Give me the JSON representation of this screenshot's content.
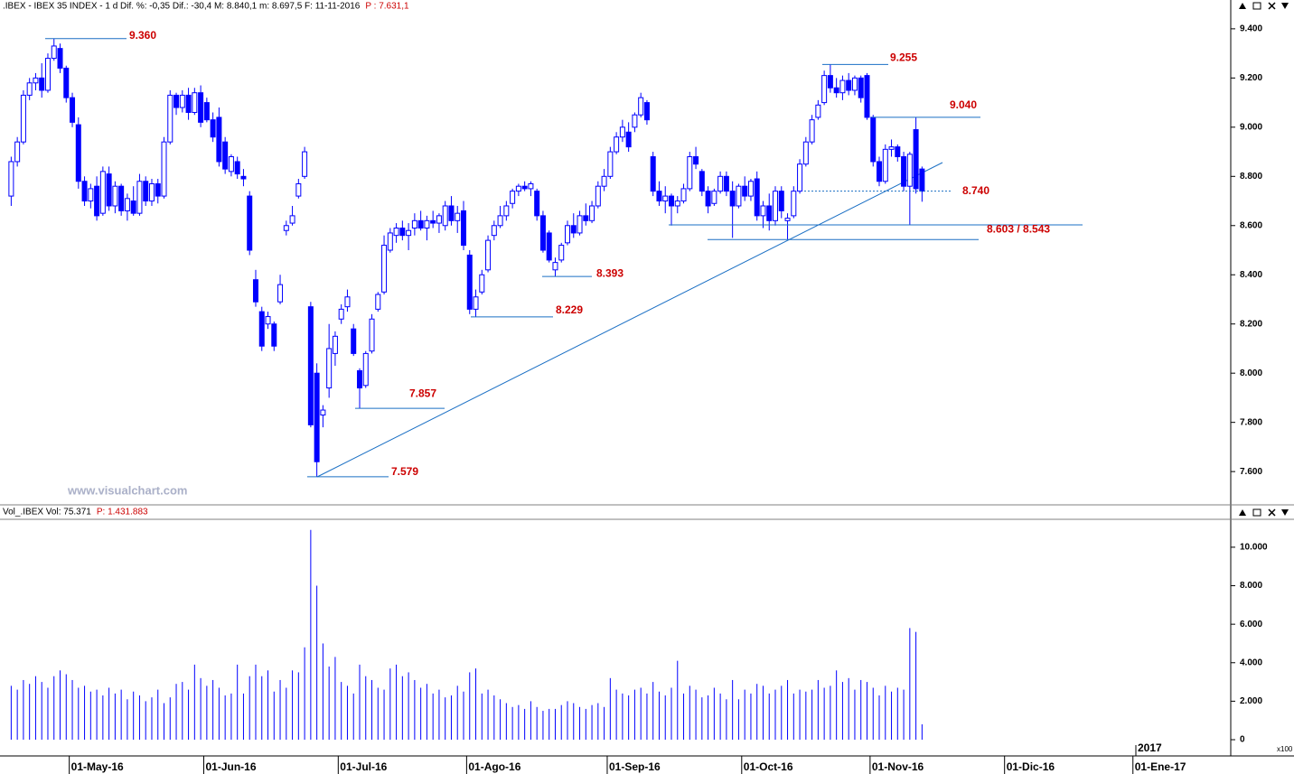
{
  "chart_data": [
    {
      "type": "candlestick",
      "title": ".IBEX - IBEX 35 INDEX - 1 d Dif. %: -0,35  Dif.: -30,4  M: 8.840,1  m: 8.697,5  F: 11-11-2016",
      "price_label": "P : 7.631,1",
      "watermark": "www.visualchart.com",
      "color": "#0000ff",
      "ylim": [
        7472,
        9473
      ],
      "yticks": [
        {
          "value": 7600,
          "label": "7.600"
        },
        {
          "value": 7800,
          "label": "7.800"
        },
        {
          "value": 8000,
          "label": "8.000"
        },
        {
          "value": 8200,
          "label": "8.200"
        },
        {
          "value": 8400,
          "label": "8.400"
        },
        {
          "value": 8600,
          "label": "8.600"
        },
        {
          "value": 8800,
          "label": "8.800"
        },
        {
          "value": 9000,
          "label": "9.000"
        },
        {
          "value": 9200,
          "label": "9.200"
        },
        {
          "value": 9400,
          "label": "9.400"
        }
      ],
      "open": [
        8720,
        8860,
        8940,
        9130,
        9180,
        9200,
        9150,
        9280,
        9320,
        9240,
        9120,
        9010,
        8780,
        8700,
        8760,
        8650,
        8810,
        8680,
        8760,
        8660,
        8700,
        8650,
        8780,
        8700,
        8770,
        8720,
        8940,
        9130,
        9080,
        9130,
        9060,
        9140,
        9100,
        9030,
        9040,
        8940,
        8820,
        8860,
        8800,
        8720,
        8380,
        8250,
        8200,
        8200,
        8290,
        8580,
        8610,
        8720,
        8800,
        8270,
        8000,
        7830,
        7940,
        8080,
        8220,
        8270,
        8180,
        8010,
        7950,
        8090,
        8260,
        8330,
        8500,
        8560,
        8590,
        8560,
        8590,
        8620,
        8590,
        8620,
        8610,
        8600,
        8680,
        8620,
        8660,
        8480,
        8260,
        8330,
        8420,
        8560,
        8600,
        8640,
        8690,
        8740,
        8760,
        8750,
        8740,
        8640,
        8570,
        8420,
        8460,
        8530,
        8600,
        8570,
        8640,
        8620,
        8680,
        8760,
        8800,
        8900,
        8960,
        8980,
        9000,
        9050,
        9100,
        8880,
        8740,
        8700,
        8720,
        8680,
        8700,
        8750,
        8880,
        8820,
        8740,
        8690,
        8740,
        8800,
        8740,
        8680,
        8760,
        8720,
        8790,
        8640,
        8680,
        8620,
        8740,
        8620,
        8640,
        8740,
        8850,
        8940,
        9040,
        9100,
        9210,
        9160,
        9140,
        9190,
        9150,
        9200,
        9210,
        9040,
        8860,
        8780,
        8910,
        8920,
        8880,
        8760,
        8990,
        8830
      ],
      "high": [
        8880,
        8960,
        9150,
        9200,
        9220,
        9260,
        9300,
        9360,
        9340,
        9250,
        9140,
        9040,
        8800,
        8770,
        8800,
        8840,
        8840,
        8780,
        8770,
        8730,
        8760,
        8810,
        8800,
        8790,
        8790,
        8960,
        9150,
        9140,
        9150,
        9160,
        9160,
        9170,
        9120,
        9060,
        9080,
        8960,
        8890,
        8880,
        8830,
        8740,
        8420,
        8270,
        8250,
        8210,
        8400,
        8620,
        8680,
        8790,
        8920,
        8290,
        8040,
        7870,
        8200,
        8170,
        8280,
        8340,
        8200,
        8020,
        8090,
        8240,
        8330,
        8560,
        8590,
        8610,
        8620,
        8610,
        8650,
        8660,
        8640,
        8660,
        8650,
        8700,
        8720,
        8680,
        8700,
        8500,
        8340,
        8420,
        8560,
        8620,
        8680,
        8700,
        8750,
        8770,
        8780,
        8780,
        8750,
        8660,
        8580,
        8470,
        8530,
        8620,
        8650,
        8660,
        8690,
        8700,
        8780,
        8830,
        8920,
        8980,
        9030,
        9020,
        9060,
        9140,
        9110,
        8900,
        8780,
        8760,
        8730,
        8720,
        8770,
        8900,
        8920,
        8830,
        8760,
        8750,
        8820,
        8820,
        8780,
        8770,
        8800,
        8790,
        8820,
        8700,
        8730,
        8760,
        8760,
        8650,
        8760,
        8870,
        8960,
        9050,
        9110,
        9230,
        9255,
        9200,
        9210,
        9220,
        9210,
        9210,
        9220,
        9050,
        8880,
        8930,
        8950,
        8930,
        8900,
        8900,
        9040,
        8840
      ],
      "low": [
        8680,
        8840,
        8930,
        9110,
        9150,
        9120,
        9140,
        9270,
        9220,
        9100,
        9000,
        8750,
        8680,
        8670,
        8620,
        8640,
        8660,
        8650,
        8640,
        8620,
        8640,
        8640,
        8680,
        8680,
        8690,
        8710,
        8930,
        9050,
        9060,
        9030,
        9050,
        9000,
        9020,
        8940,
        8840,
        8810,
        8800,
        8790,
        8760,
        8480,
        8270,
        8090,
        8180,
        8090,
        8280,
        8560,
        8600,
        8710,
        8790,
        7780,
        7579,
        7780,
        7900,
        8030,
        8200,
        8250,
        8070,
        7857,
        7940,
        8080,
        8250,
        8320,
        8490,
        8530,
        8540,
        8500,
        8560,
        8580,
        8540,
        8590,
        8570,
        8580,
        8600,
        8570,
        8500,
        8240,
        8229,
        8320,
        8410,
        8540,
        8590,
        8620,
        8670,
        8720,
        8740,
        8720,
        8620,
        8490,
        8450,
        8393,
        8450,
        8520,
        8550,
        8560,
        8600,
        8610,
        8670,
        8740,
        8790,
        8890,
        8940,
        8900,
        8980,
        9040,
        9010,
        8720,
        8680,
        8650,
        8600,
        8650,
        8690,
        8740,
        8830,
        8720,
        8650,
        8680,
        8730,
        8720,
        8550,
        8670,
        8700,
        8700,
        8620,
        8590,
        8580,
        8600,
        8630,
        8543,
        8630,
        8730,
        8840,
        8930,
        9030,
        9090,
        9140,
        9120,
        9110,
        9130,
        9130,
        9100,
        9030,
        8840,
        8760,
        8770,
        8880,
        8860,
        8740,
        8603,
        8730,
        8697
      ],
      "close": [
        8860,
        8940,
        9130,
        9180,
        9200,
        9150,
        9280,
        9330,
        9240,
        9120,
        9020,
        8780,
        8700,
        8750,
        8640,
        8820,
        8680,
        8760,
        8660,
        8710,
        8650,
        8780,
        8700,
        8770,
        8720,
        8940,
        9130,
        9080,
        9130,
        9060,
        9140,
        9020,
        9030,
        8960,
        8860,
        8830,
        8880,
        8810,
        8790,
        8500,
        8290,
        8110,
        8230,
        8110,
        8360,
        8600,
        8640,
        8770,
        8900,
        7790,
        7640,
        7850,
        8100,
        8150,
        8260,
        8310,
        8080,
        7940,
        8080,
        8220,
        8320,
        8520,
        8570,
        8590,
        8560,
        8580,
        8620,
        8590,
        8620,
        8610,
        8640,
        8680,
        8620,
        8650,
        8520,
        8260,
        8310,
        8400,
        8540,
        8600,
        8640,
        8680,
        8740,
        8760,
        8750,
        8770,
        8640,
        8500,
        8460,
        8450,
        8520,
        8600,
        8570,
        8640,
        8620,
        8680,
        8760,
        8800,
        8900,
        8960,
        9000,
        8920,
        9050,
        9120,
        9030,
        8740,
        8700,
        8720,
        8680,
        8700,
        8750,
        8880,
        8850,
        8740,
        8680,
        8740,
        8800,
        8740,
        8680,
        8760,
        8720,
        8780,
        8640,
        8680,
        8620,
        8740,
        8660,
        8630,
        8740,
        8850,
        8940,
        9030,
        9090,
        9210,
        9160,
        9140,
        9190,
        9150,
        9200,
        9120,
        9040,
        8860,
        8780,
        8910,
        8920,
        8880,
        8760,
        8890,
        8750,
        8740
      ],
      "annotations": [
        {
          "value": 9360,
          "label": "9.360"
        },
        {
          "value": 9255,
          "label": "9.255"
        },
        {
          "value": 9040,
          "label": "9.040"
        },
        {
          "value": 8740,
          "label": "8.740"
        },
        {
          "values": [
            8603,
            8543
          ],
          "label": "8.603 / 8.543"
        },
        {
          "value": 8393,
          "label": "8.393"
        },
        {
          "value": 8229,
          "label": "8.229"
        },
        {
          "value": 7857,
          "label": "7.857"
        },
        {
          "value": 7579,
          "label": "7.579"
        }
      ]
    },
    {
      "type": "bar",
      "title": "Vol_.IBEX Vol: 75.371",
      "price_label": "P: 1.431.883",
      "unit_label": "x100",
      "year_label": "2017",
      "color": "#0000ff",
      "ylim": [
        -750,
        11450
      ],
      "yticks": [
        0,
        {
          "value": 2000,
          "label": "2.000"
        },
        {
          "value": 4000,
          "label": "4.000"
        },
        {
          "value": 6000,
          "label": "6.000"
        },
        {
          "value": 8000,
          "label": "8.000"
        },
        {
          "value": 10000,
          "label": "10.000"
        }
      ],
      "categories": [
        null,
        null,
        null,
        null,
        null,
        null,
        null,
        null,
        null,
        null,
        "01-May-16",
        null,
        null,
        null,
        null,
        null,
        null,
        null,
        null,
        null,
        null,
        null,
        null,
        null,
        null,
        null,
        null,
        null,
        null,
        null,
        null,
        null,
        "01-Jun-16",
        null,
        null,
        null,
        null,
        null,
        null,
        null,
        null,
        null,
        null,
        null,
        null,
        null,
        null,
        null,
        null,
        null,
        null,
        null,
        null,
        null,
        "01-Jul-16",
        null,
        null,
        null,
        null,
        null,
        null,
        null,
        null,
        null,
        null,
        null,
        null,
        null,
        null,
        null,
        null,
        null,
        null,
        null,
        null,
        "01-Ago-16",
        null,
        null,
        null,
        null,
        null,
        null,
        null,
        null,
        null,
        null,
        null,
        null,
        null,
        null,
        null,
        null,
        null,
        null,
        null,
        null,
        null,
        null,
        "01-Sep-16",
        null,
        null,
        null,
        null,
        null,
        null,
        null,
        null,
        null,
        null,
        null,
        null,
        null,
        null,
        null,
        null,
        null,
        null,
        null,
        null,
        null,
        "01-Oct-16",
        null,
        null,
        null,
        null,
        null,
        null,
        null,
        null,
        null,
        null,
        null,
        null,
        null,
        null,
        null,
        null,
        null,
        null,
        null,
        null,
        "01-Nov-16",
        null,
        null,
        null,
        null,
        null,
        null,
        null,
        null,
        null,
        null,
        null,
        null,
        null,
        null,
        null,
        null,
        null,
        null,
        null,
        null,
        null,
        "01-Dic-16",
        null,
        null,
        null,
        null,
        null,
        null,
        null,
        null,
        null,
        null,
        null,
        null,
        null,
        null,
        null,
        null,
        null,
        null,
        null,
        null,
        "01-Ene-17",
        null,
        null,
        null,
        null,
        null,
        null,
        null,
        null,
        null,
        null,
        null,
        null,
        null,
        null,
        null
      ],
      "values": [
        2800,
        2600,
        3100,
        2900,
        3300,
        3000,
        2700,
        3300,
        3600,
        3400,
        3100,
        2700,
        2800,
        2500,
        2600,
        2300,
        2700,
        2400,
        2600,
        2100,
        2500,
        2300,
        2000,
        2200,
        2600,
        1900,
        2200,
        2900,
        3000,
        2600,
        3900,
        3200,
        2800,
        3100,
        2700,
        2300,
        2400,
        3900,
        2400,
        3300,
        3900,
        3300,
        3600,
        2500,
        3100,
        2700,
        3600,
        3500,
        4800,
        10900,
        8000,
        5000,
        3800,
        4300,
        3000,
        2800,
        2400,
        3900,
        3300,
        3100,
        2700,
        2600,
        3700,
        3900,
        3300,
        3500,
        3100,
        2700,
        2900,
        2400,
        2600,
        2200,
        2300,
        2800,
        2500,
        3500,
        3700,
        2400,
        2600,
        2300,
        2100,
        1900,
        1700,
        1800,
        1600,
        2000,
        1700,
        1500,
        1600,
        1600,
        1800,
        2000,
        1900,
        1700,
        1600,
        1800,
        1900,
        1700,
        3200,
        2600,
        2400,
        2300,
        2600,
        2700,
        2400,
        3000,
        2500,
        2300,
        2700,
        4100,
        2400,
        2800,
        2600,
        2200,
        2300,
        2700,
        2400,
        2100,
        3100,
        2100,
        2600,
        2400,
        2900,
        2800,
        2400,
        2600,
        2800,
        3100,
        2400,
        2600,
        2500,
        2600,
        3100,
        2700,
        2800,
        3600,
        3000,
        3200,
        2600,
        3100,
        3000,
        2700,
        2300,
        2800,
        2500,
        2700,
        2600,
        5800,
        5600,
        800,
        null,
        null,
        null,
        null,
        null,
        null,
        null,
        null,
        null,
        null,
        null,
        null,
        null,
        null,
        null,
        null,
        null,
        null,
        null,
        null,
        null,
        null,
        null,
        null,
        null,
        null,
        null,
        null,
        null,
        null,
        null,
        null,
        null,
        null,
        null,
        null,
        null,
        null,
        null,
        null,
        null,
        null,
        null,
        null,
        null,
        null,
        null,
        null,
        null,
        null
      ]
    }
  ]
}
